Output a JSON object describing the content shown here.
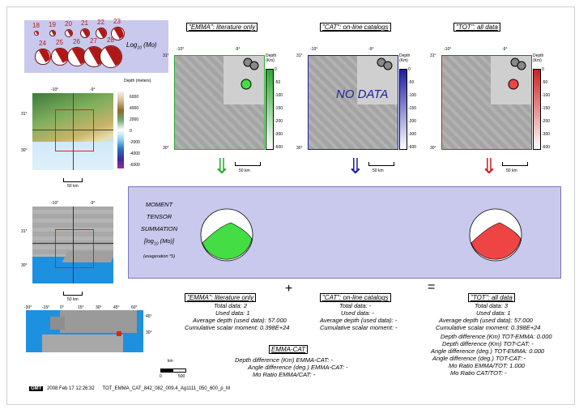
{
  "legend": {
    "magnitudes": [
      "18",
      "19",
      "20",
      "21",
      "22",
      "23",
      "24",
      "25",
      "26",
      "27",
      "28"
    ],
    "scale_label": "Log",
    "scale_sub": "10",
    "scale_unit": "(Mo)"
  },
  "panels": [
    {
      "title": "\"EMMA\": literature only",
      "color": "#2fa82f",
      "lat_top": "31°",
      "lat_bottom": "30°",
      "lon_left": "-10°",
      "lon_right": "-9°",
      "depth_title": "Depth (Km)",
      "depth_ticks": [
        "0",
        "-50",
        "-100",
        "-150",
        "-200",
        "-300",
        "-600"
      ],
      "scale": "50 km",
      "nodata": ""
    },
    {
      "title": "\"CAT\": on-line catalogs",
      "color": "#1e1ea0",
      "lat_top": "31°",
      "lat_bottom": "30°",
      "lon_left": "-10°",
      "lon_right": "-9°",
      "depth_title": "Depth (Km)",
      "depth_ticks": [
        "0",
        "-50",
        "-100",
        "-150",
        "-200",
        "-300",
        "-600"
      ],
      "scale": "50 km",
      "nodata": "NO DATA"
    },
    {
      "title": "\"TOT\": all data",
      "color": "#d02020",
      "lat_top": "31°",
      "lat_bottom": "30°",
      "lon_left": "-10°",
      "lon_right": "-9°",
      "depth_title": "Depth (Km)",
      "depth_ticks": [
        "0",
        "-50",
        "-100",
        "-150",
        "-200",
        "-300",
        "-600"
      ],
      "scale": "50 km",
      "nodata": ""
    }
  ],
  "topo_map": {
    "title": "Depth (meters)",
    "ticks": [
      "6000",
      "4000",
      "2000",
      "0",
      "-2000",
      "-4000",
      "-6000"
    ],
    "lat_top": "31°",
    "lat_bottom": "30°",
    "lon_left": "-10°",
    "lon_right": "-9°",
    "scale": "50 km"
  },
  "gray_map": {
    "lat_top": "31°",
    "lat_bottom": "30°",
    "lon_left": "-10°",
    "lon_right": "-9°",
    "scale": "50 km"
  },
  "world_map": {
    "lons": [
      "-30°",
      "-15°",
      "0°",
      "15°",
      "30°",
      "45°",
      "60°"
    ],
    "lats": [
      "45°",
      "30°"
    ],
    "scale_unit": "km",
    "scale_ticks": [
      "0",
      "500"
    ]
  },
  "summation": {
    "line1": "MOMENT",
    "line2": "TENSOR",
    "line3": "SUMMATION",
    "line4_pre": "[log",
    "line4_sub": "10",
    "line4_post": " (Mo)]",
    "line5": "(exageration *5)"
  },
  "ops": {
    "plus": "+",
    "equals": "="
  },
  "stats_emma": {
    "title": "\"EMMA\": literature only",
    "total": "Total data:   2",
    "used": "Used data:   1",
    "avgdepth": "Average depth (used data):   57.000",
    "moment": "Cumulative scalar moment: 0.398E+24"
  },
  "stats_cat": {
    "title": "\"CAT\": on-line catalogs",
    "total": "Total data: -",
    "used": "Used data: -",
    "avgdepth": "Average depth (used data): -",
    "moment": "Cumulative scalar moment: -"
  },
  "stats_tot": {
    "title": "\"TOT\": all data",
    "total": "Total data:   3",
    "used": "Used data:   1",
    "avgdepth": "Average depth (used data):   57.000",
    "moment": "Cumulative scalar moment: 0.398E+24",
    "d1": "Depth difference (Km) TOT-EMMA:    0.000",
    "d2": "Depth difference (Km) TOT-CAT: -",
    "d3": "Angle difference (deg.) TOT-EMMA:    0.000",
    "d4": "Angle difference (deg.) TOT-CAT: -",
    "d5": "Mo Ratio EMMA/TOT:    1.000",
    "d6": "Mo Ratio CAT/TOT: -"
  },
  "emma_cat": {
    "title": "EMMA-CAT",
    "l1": "Depth difference (Km) EMMA-CAT: -",
    "l2": "Angle difference (deg.) EMMA-CAT: -",
    "l3": "Mo Ratio EMMA/CAT: -"
  },
  "footer": {
    "logo": "GMT",
    "timestamp": "2008 Feb 17 12:26:32",
    "filename": "TOT_EMMA_CAT_842_082_009.4_Ag1111_050_600_p_M"
  },
  "colors": {
    "emma": "#2fa82f",
    "cat": "#1e1ea0",
    "tot": "#d02020",
    "box": "#c9c9ee"
  }
}
